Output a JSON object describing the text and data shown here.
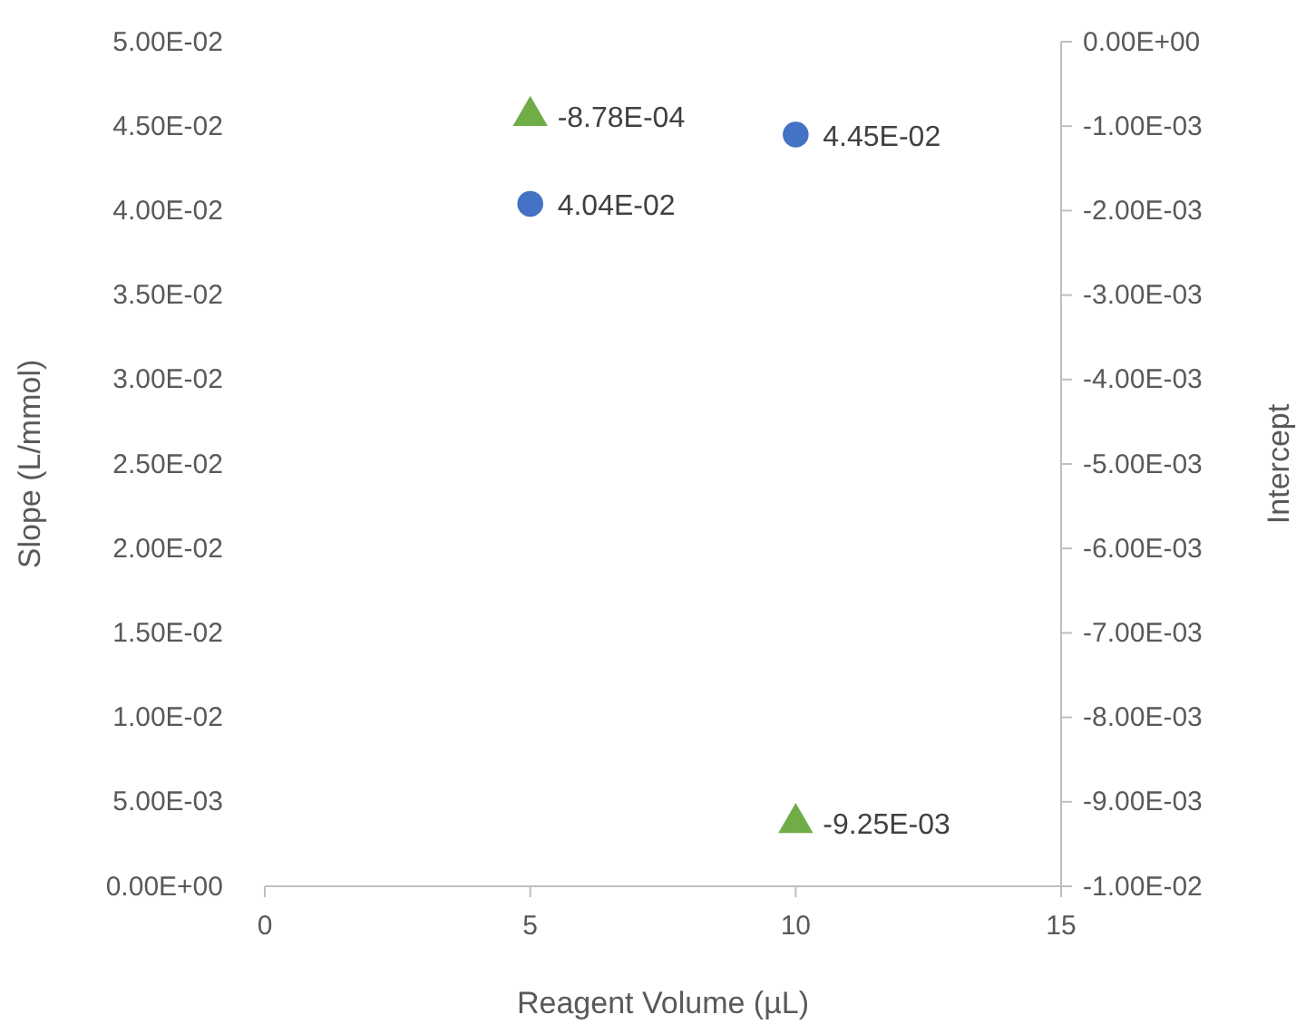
{
  "chart_data": {
    "type": "scatter",
    "xlabel": "Reagent Volume (µL)",
    "ylabel": "Slope (L/mmol)",
    "y2label": "Intercept",
    "x": [
      5,
      10
    ],
    "xlim": [
      0,
      15
    ],
    "xticks": [
      0,
      5,
      10,
      15
    ],
    "ylim": [
      0,
      0.05
    ],
    "yticks": [
      {
        "value": 0,
        "label": "0.00E+00"
      },
      {
        "value": 0.005,
        "label": "5.00E-03"
      },
      {
        "value": 0.01,
        "label": "1.00E-02"
      },
      {
        "value": 0.015,
        "label": "1.50E-02"
      },
      {
        "value": 0.02,
        "label": "2.00E-02"
      },
      {
        "value": 0.025,
        "label": "2.50E-02"
      },
      {
        "value": 0.03,
        "label": "3.00E-02"
      },
      {
        "value": 0.035,
        "label": "3.50E-02"
      },
      {
        "value": 0.04,
        "label": "4.00E-02"
      },
      {
        "value": 0.045,
        "label": "4.50E-02"
      },
      {
        "value": 0.05,
        "label": "5.00E-02"
      }
    ],
    "y2lim": [
      -0.01,
      0
    ],
    "y2ticks": [
      {
        "value": -0.01,
        "label": "-1.00E-02"
      },
      {
        "value": -0.009,
        "label": "-9.00E-03"
      },
      {
        "value": -0.008,
        "label": "-8.00E-03"
      },
      {
        "value": -0.007,
        "label": "-7.00E-03"
      },
      {
        "value": -0.006,
        "label": "-6.00E-03"
      },
      {
        "value": -0.005,
        "label": "-5.00E-03"
      },
      {
        "value": -0.004,
        "label": "-4.00E-03"
      },
      {
        "value": -0.003,
        "label": "-3.00E-03"
      },
      {
        "value": -0.002,
        "label": "-2.00E-03"
      },
      {
        "value": -0.001,
        "label": "-1.00E-03"
      },
      {
        "value": 0,
        "label": "0.00E+00"
      }
    ],
    "series": [
      {
        "color": "#4472c4",
        "marker": "circle",
        "values": [
          0.0404,
          0.0445
        ],
        "value_labels": [
          "4.04E-02",
          "4.45E-02"
        ]
      },
      {
        "color": "#70ad47",
        "marker": "triangle",
        "axis": "y2",
        "values": [
          -0.000878,
          -0.00925
        ],
        "value_labels": [
          "-8.78E-04",
          "-9.25E-03"
        ]
      }
    ]
  }
}
